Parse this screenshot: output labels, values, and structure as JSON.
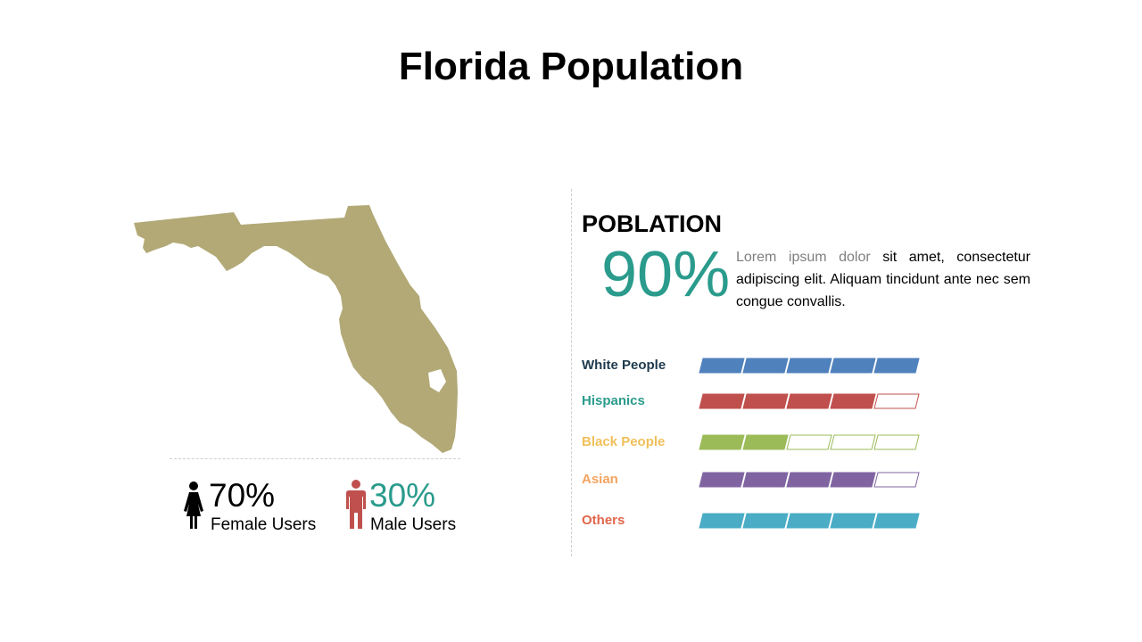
{
  "page": {
    "title": "Florida Population"
  },
  "gender": {
    "female": {
      "percent": "70%",
      "label": "Female Users",
      "color": "#000000",
      "icon": "female-icon"
    },
    "male": {
      "percent": "30%",
      "label": "Male Users",
      "color": "#2a9b8c",
      "icon": "male-icon",
      "icon_color": "#c0504d"
    }
  },
  "population": {
    "heading": "POBLATION",
    "percent": "90%",
    "description_muted": "Lorem ipsum dolor",
    "description_rest": " sit amet, consectetur adipiscing elit. Aliquam tincidunt ante nec sem congue convallis."
  },
  "groups": [
    {
      "name": "White People",
      "filled": 5,
      "total": 5,
      "color": "#4f81bd",
      "label_color": "#1f3a4d"
    },
    {
      "name": "Hispanics",
      "filled": 4,
      "total": 5,
      "color": "#c0504d",
      "label_color": "#2a9b8c"
    },
    {
      "name": "Black People",
      "filled": 2,
      "total": 5,
      "color": "#9bbb59",
      "label_color": "#f0c05a"
    },
    {
      "name": "Asian",
      "filled": 4,
      "total": 5,
      "color": "#8064a2",
      "label_color": "#f4a460"
    },
    {
      "name": "Others",
      "filled": 5,
      "total": 5,
      "color": "#4bacc6",
      "label_color": "#e0664a"
    }
  ],
  "colors": {
    "map": "#b2a977",
    "accent": "#2a9b8c"
  }
}
